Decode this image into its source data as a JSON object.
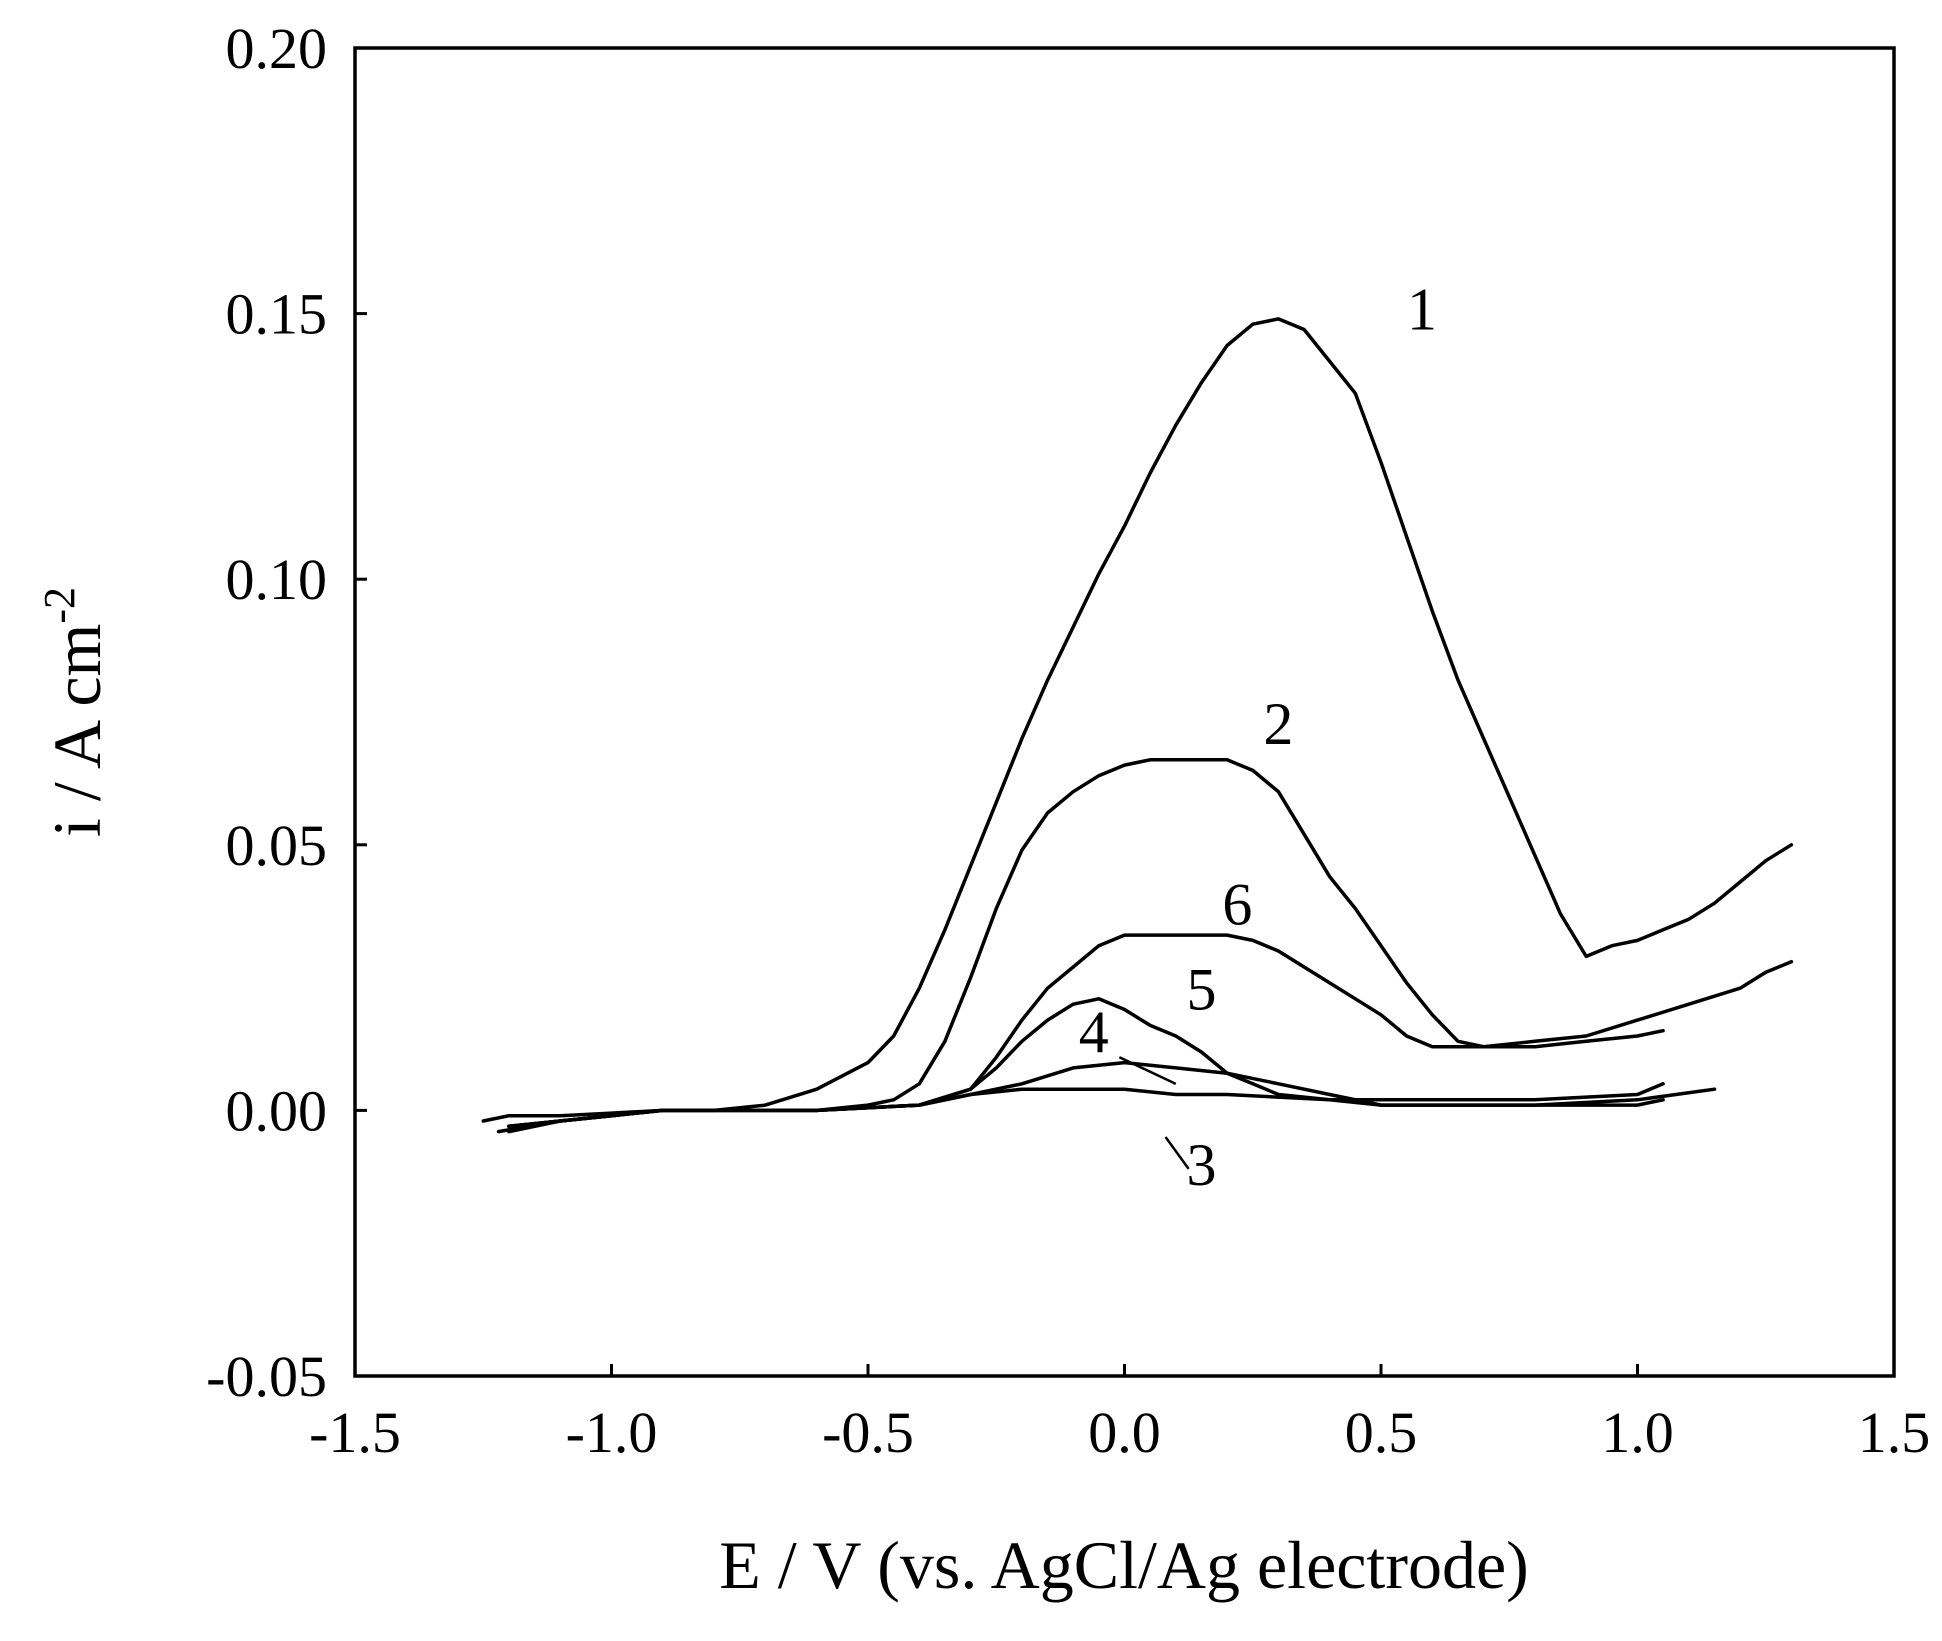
{
  "chart_data": {
    "type": "line",
    "title": "",
    "xlabel": "E / V (vs. AgCl/Ag electrode)",
    "ylabel": {
      "base": "i / A cm",
      "superscript": "-2"
    },
    "xlim": [
      -1.5,
      1.5
    ],
    "ylim": [
      -0.05,
      0.2
    ],
    "xticks": [
      -1.5,
      -1.0,
      -0.5,
      0.0,
      0.5,
      1.0,
      1.5
    ],
    "xtick_labels": [
      "-1.5",
      "-1.0",
      "-0.5",
      "0.0",
      "0.5",
      "1.0",
      "1.5"
    ],
    "yticks": [
      -0.05,
      0.0,
      0.05,
      0.1,
      0.15,
      0.2
    ],
    "ytick_labels": [
      "-0.05",
      "0.00",
      "0.05",
      "0.10",
      "0.15",
      "0.20"
    ],
    "grid": false,
    "legend": "none",
    "series": [
      {
        "name": "1",
        "x": [
          -1.25,
          -1.2,
          -1.1,
          -1.0,
          -0.9,
          -0.8,
          -0.7,
          -0.6,
          -0.5,
          -0.45,
          -0.4,
          -0.35,
          -0.3,
          -0.25,
          -0.2,
          -0.15,
          -0.1,
          -0.05,
          0.0,
          0.05,
          0.1,
          0.15,
          0.2,
          0.25,
          0.3,
          0.35,
          0.4,
          0.45,
          0.5,
          0.55,
          0.6,
          0.65,
          0.7,
          0.75,
          0.8,
          0.85,
          0.9,
          0.95,
          1.0,
          1.05,
          1.1,
          1.15,
          1.2,
          1.25,
          1.3
        ],
        "y": [
          -0.002,
          -0.001,
          -0.001,
          -0.0005,
          0.0,
          0.0,
          0.001,
          0.004,
          0.009,
          0.014,
          0.023,
          0.034,
          0.046,
          0.058,
          0.07,
          0.081,
          0.091,
          0.101,
          0.11,
          0.12,
          0.129,
          0.137,
          0.144,
          0.148,
          0.149,
          0.147,
          0.141,
          0.135,
          0.122,
          0.108,
          0.094,
          0.081,
          0.07,
          0.059,
          0.048,
          0.037,
          0.029,
          0.031,
          0.032,
          0.034,
          0.036,
          0.039,
          0.043,
          0.047,
          0.05
        ]
      },
      {
        "name": "2",
        "x": [
          -1.22,
          -1.1,
          -1.0,
          -0.9,
          -0.8,
          -0.7,
          -0.6,
          -0.5,
          -0.45,
          -0.4,
          -0.35,
          -0.3,
          -0.25,
          -0.2,
          -0.15,
          -0.1,
          -0.05,
          0.0,
          0.05,
          0.1,
          0.15,
          0.2,
          0.25,
          0.3,
          0.35,
          0.4,
          0.45,
          0.5,
          0.55,
          0.6,
          0.65,
          0.7,
          0.8,
          0.9,
          1.0,
          1.05
        ],
        "y": [
          -0.004,
          -0.002,
          -0.001,
          0.0,
          0.0,
          0.0,
          0.0,
          0.001,
          0.002,
          0.005,
          0.013,
          0.025,
          0.038,
          0.049,
          0.056,
          0.06,
          0.063,
          0.065,
          0.066,
          0.066,
          0.066,
          0.066,
          0.064,
          0.06,
          0.052,
          0.044,
          0.038,
          0.031,
          0.024,
          0.018,
          0.013,
          0.012,
          0.012,
          0.013,
          0.014,
          0.015
        ]
      },
      {
        "name": "3",
        "x": [
          -1.2,
          -1.1,
          -1.0,
          -0.9,
          -0.8,
          -0.6,
          -0.4,
          -0.3,
          -0.2,
          -0.1,
          0.0,
          0.1,
          0.2,
          0.4,
          0.6,
          0.8,
          1.0,
          1.05
        ],
        "y": [
          -0.003,
          -0.002,
          -0.001,
          0.0,
          0.0,
          0.0,
          0.001,
          0.003,
          0.004,
          0.004,
          0.004,
          0.003,
          0.003,
          0.002,
          0.002,
          0.002,
          0.003,
          0.005
        ]
      },
      {
        "name": "4",
        "x": [
          -1.2,
          -1.1,
          -1.0,
          -0.9,
          -0.8,
          -0.6,
          -0.4,
          -0.3,
          -0.2,
          -0.1,
          0.0,
          0.1,
          0.2,
          0.3,
          0.4,
          0.5,
          0.6,
          0.8,
          1.0,
          1.05
        ],
        "y": [
          -0.003,
          -0.002,
          -0.001,
          0.0,
          0.0,
          0.0,
          0.001,
          0.003,
          0.005,
          0.008,
          0.009,
          0.008,
          0.007,
          0.005,
          0.003,
          0.001,
          0.001,
          0.001,
          0.001,
          0.002
        ]
      },
      {
        "name": "5",
        "x": [
          -1.2,
          -1.1,
          -1.0,
          -0.9,
          -0.8,
          -0.6,
          -0.4,
          -0.3,
          -0.25,
          -0.2,
          -0.15,
          -0.1,
          -0.05,
          0.0,
          0.05,
          0.1,
          0.15,
          0.2,
          0.25,
          0.3,
          0.4,
          0.5,
          0.6,
          0.8,
          1.0,
          1.15
        ],
        "y": [
          -0.003,
          -0.002,
          -0.001,
          0.0,
          0.0,
          0.0,
          0.001,
          0.004,
          0.008,
          0.013,
          0.017,
          0.02,
          0.021,
          0.019,
          0.016,
          0.014,
          0.011,
          0.007,
          0.005,
          0.003,
          0.002,
          0.001,
          0.001,
          0.001,
          0.002,
          0.004
        ]
      },
      {
        "name": "6",
        "x": [
          -1.2,
          -1.1,
          -1.0,
          -0.9,
          -0.8,
          -0.6,
          -0.4,
          -0.3,
          -0.25,
          -0.2,
          -0.15,
          -0.1,
          -0.05,
          0.0,
          0.1,
          0.2,
          0.25,
          0.3,
          0.35,
          0.4,
          0.45,
          0.5,
          0.55,
          0.6,
          0.7,
          0.8,
          0.9,
          1.0,
          1.1,
          1.2,
          1.25,
          1.3
        ],
        "y": [
          -0.004,
          -0.002,
          -0.001,
          0.0,
          0.0,
          0.0,
          0.001,
          0.004,
          0.01,
          0.017,
          0.023,
          0.027,
          0.031,
          0.033,
          0.033,
          0.033,
          0.032,
          0.03,
          0.027,
          0.024,
          0.021,
          0.018,
          0.014,
          0.012,
          0.012,
          0.013,
          0.014,
          0.017,
          0.02,
          0.023,
          0.026,
          0.028
        ]
      }
    ],
    "curve_labels": [
      {
        "text": "1",
        "x": 0.58,
        "y": 0.147
      },
      {
        "text": "2",
        "x": 0.3,
        "y": 0.069
      },
      {
        "text": "6",
        "x": 0.22,
        "y": 0.035
      },
      {
        "text": "5",
        "x": 0.15,
        "y": 0.019
      },
      {
        "text": "4",
        "x": -0.06,
        "y": 0.011
      },
      {
        "text": "3",
        "x": 0.15,
        "y": -0.014
      }
    ],
    "leader_lines": [
      {
        "label": "4",
        "from": [
          -0.01,
          0.01
        ],
        "to": [
          0.1,
          0.005
        ]
      },
      {
        "label": "3",
        "from": [
          0.08,
          -0.005
        ],
        "to": [
          0.125,
          -0.011
        ]
      }
    ]
  }
}
